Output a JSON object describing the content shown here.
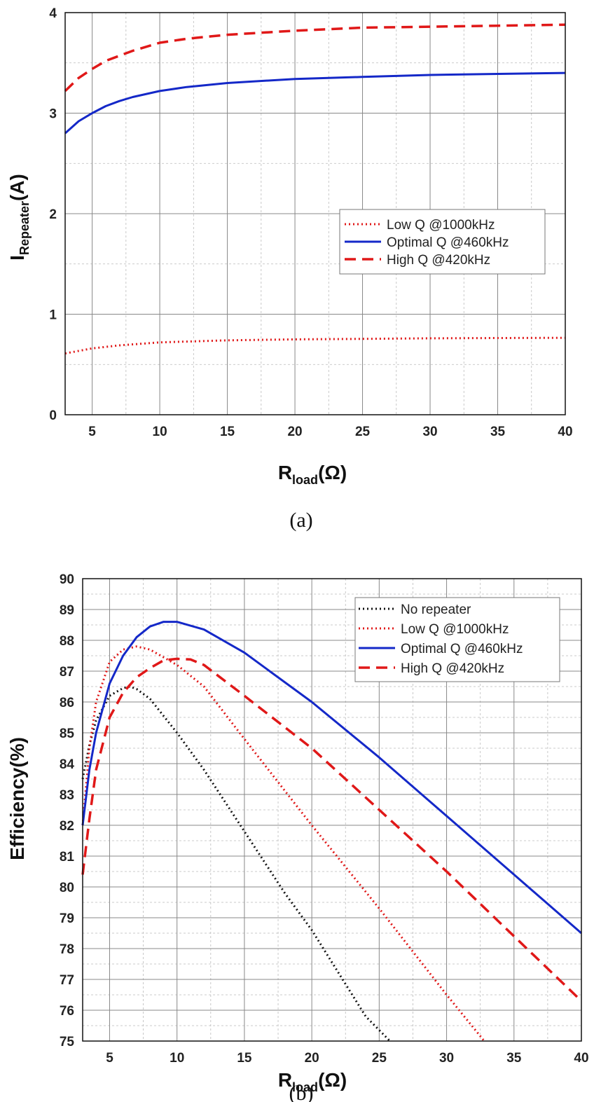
{
  "colors": {
    "blue": "#1428c8",
    "red": "#e01818",
    "black": "#111111"
  },
  "chart_data": [
    {
      "type": "line",
      "caption": "(a)",
      "xlabel": "R",
      "xlabel_sub": "load",
      "xlabel_unit": "(Ω)",
      "ylabel": "I",
      "ylabel_sub": "Repeater",
      "ylabel_unit": "(A)",
      "xlim": [
        3,
        40
      ],
      "ylim": [
        0,
        4
      ],
      "xticks": [
        5,
        10,
        15,
        20,
        25,
        30,
        35,
        40
      ],
      "yticks": [
        0,
        1,
        2,
        3,
        4
      ],
      "grid": true,
      "legend_position": "right-middle",
      "series": [
        {
          "name": "Low Q @1000kHz",
          "color": "#e01818",
          "style": "dotted",
          "x": [
            3,
            5,
            7,
            10,
            15,
            20,
            25,
            30,
            35,
            40
          ],
          "y": [
            0.61,
            0.66,
            0.69,
            0.72,
            0.74,
            0.75,
            0.755,
            0.76,
            0.763,
            0.765
          ]
        },
        {
          "name": "Optimal Q @460kHz",
          "color": "#1428c8",
          "style": "solid",
          "x": [
            3,
            4,
            5,
            6,
            7,
            8,
            10,
            12,
            15,
            20,
            25,
            30,
            35,
            40
          ],
          "y": [
            2.8,
            2.92,
            3.0,
            3.07,
            3.12,
            3.16,
            3.22,
            3.26,
            3.3,
            3.34,
            3.36,
            3.38,
            3.39,
            3.4
          ]
        },
        {
          "name": "High Q @420kHz",
          "color": "#e01818",
          "style": "dashed",
          "x": [
            3,
            4,
            5,
            6,
            7,
            8,
            10,
            12,
            15,
            20,
            25,
            30,
            35,
            40
          ],
          "y": [
            3.22,
            3.35,
            3.44,
            3.52,
            3.57,
            3.62,
            3.7,
            3.74,
            3.78,
            3.82,
            3.85,
            3.86,
            3.87,
            3.88
          ]
        }
      ]
    },
    {
      "type": "line",
      "caption": "(b)",
      "xlabel": "R",
      "xlabel_sub": "load",
      "xlabel_unit": "(Ω)",
      "ylabel": "Efficiency(%)",
      "xlim": [
        3,
        40
      ],
      "ylim": [
        75,
        90
      ],
      "xticks": [
        5,
        10,
        15,
        20,
        25,
        30,
        35,
        40
      ],
      "yticks": [
        75,
        76,
        77,
        78,
        79,
        80,
        81,
        82,
        83,
        84,
        85,
        86,
        87,
        88,
        89,
        90
      ],
      "grid": true,
      "legend_position": "top-right",
      "series": [
        {
          "name": "No repeater",
          "color": "#111111",
          "style": "dotted",
          "x": [
            3,
            3.5,
            4,
            5,
            6,
            6.5,
            7,
            8,
            10,
            12,
            15,
            18,
            20,
            22,
            24,
            25.8
          ],
          "y": [
            83.5,
            84.6,
            85.4,
            86.2,
            86.45,
            86.5,
            86.42,
            86.1,
            85.0,
            83.8,
            81.8,
            79.8,
            78.6,
            77.2,
            75.8,
            75.0
          ]
        },
        {
          "name": "Low Q @1000kHz",
          "color": "#e01818",
          "style": "dotted",
          "x": [
            3,
            3.5,
            4,
            5,
            6,
            7,
            8,
            10,
            12,
            15,
            20,
            25,
            30,
            32.8
          ],
          "y": [
            82.0,
            84.5,
            86.0,
            87.3,
            87.7,
            87.8,
            87.7,
            87.2,
            86.5,
            84.8,
            82.0,
            79.3,
            76.5,
            75.0
          ]
        },
        {
          "name": "Optimal Q @460kHz",
          "color": "#1428c8",
          "style": "solid",
          "x": [
            3,
            3.5,
            4,
            5,
            6,
            7,
            8,
            9,
            10,
            12,
            15,
            20,
            25,
            30,
            35,
            40
          ],
          "y": [
            82.0,
            83.8,
            85.0,
            86.6,
            87.5,
            88.1,
            88.45,
            88.6,
            88.6,
            88.35,
            87.6,
            86.0,
            84.2,
            82.3,
            80.4,
            78.5
          ]
        },
        {
          "name": "High Q @420kHz",
          "color": "#e01818",
          "style": "dashed",
          "x": [
            3,
            3.5,
            4,
            5,
            6,
            7,
            8,
            9,
            10,
            11,
            12,
            15,
            20,
            25,
            30,
            35,
            40
          ],
          "y": [
            80.4,
            82.2,
            83.8,
            85.5,
            86.3,
            86.8,
            87.1,
            87.35,
            87.4,
            87.38,
            87.2,
            86.2,
            84.5,
            82.5,
            80.5,
            78.4,
            76.3
          ]
        }
      ]
    }
  ]
}
